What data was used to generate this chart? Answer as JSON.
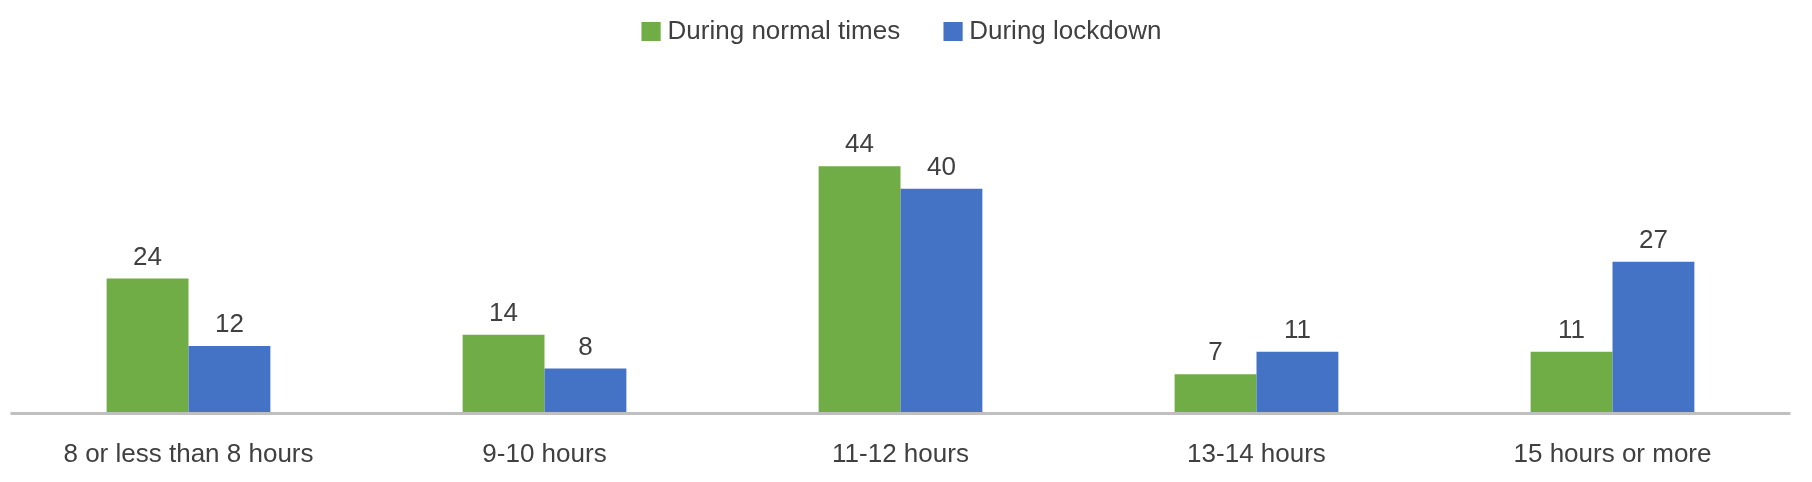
{
  "chart_data": {
    "type": "bar",
    "categories": [
      "8 or less than 8 hours",
      "9-10 hours",
      "11-12 hours",
      "13-14 hours",
      "15 hours or more"
    ],
    "series": [
      {
        "name": "During normal times",
        "color": "#70ad47",
        "values": [
          24,
          14,
          44,
          7,
          11
        ]
      },
      {
        "name": "During lockdown",
        "color": "#4472c4",
        "values": [
          12,
          8,
          40,
          11,
          27
        ]
      }
    ],
    "data_labels": true,
    "legend": "top"
  }
}
